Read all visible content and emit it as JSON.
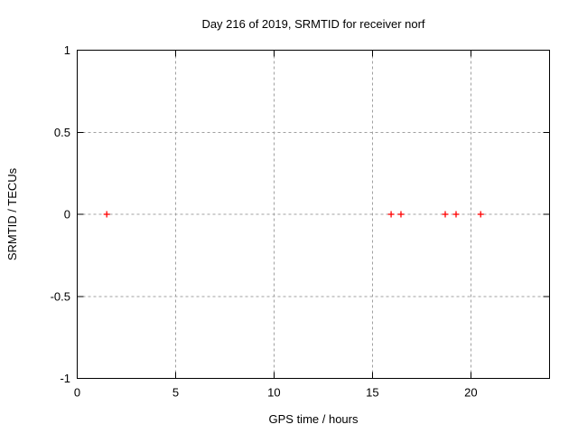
{
  "window": {
    "background": "#ffffff"
  },
  "chart_data": {
    "type": "scatter",
    "title": "Day 216 of 2019, SRMTID for receiver norf",
    "xlabel": "GPS time / hours",
    "ylabel": "SRMTID / TECUs",
    "xlim": [
      0,
      24
    ],
    "ylim": [
      -1,
      1
    ],
    "x_ticks": [
      0,
      5,
      10,
      15,
      20
    ],
    "x_tick_labels": [
      "0",
      "5",
      "10",
      "15",
      "20"
    ],
    "y_ticks": [
      -1,
      -0.5,
      0,
      0.5,
      1
    ],
    "y_tick_labels": [
      "-1",
      "-0.5",
      "0",
      "0.5",
      "1"
    ],
    "grid": true,
    "legend_position": "none",
    "series": [
      {
        "name": "SRMTID",
        "marker": "plus-marker",
        "color": "#ff0000",
        "x": [
          1.5,
          15.95,
          16.45,
          18.7,
          19.25,
          20.5
        ],
        "y": [
          0,
          0,
          0,
          0,
          0,
          0
        ]
      }
    ],
    "colors": {
      "axis": "#000000",
      "grid": "#a0a0a0",
      "text": "#000000",
      "background": "#ffffff"
    }
  }
}
